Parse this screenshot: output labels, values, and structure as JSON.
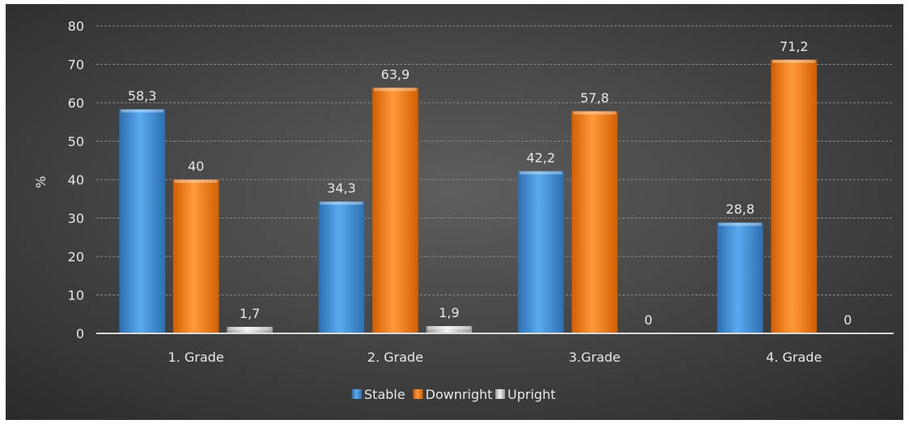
{
  "chart_data": {
    "type": "bar",
    "title": "",
    "xlabel": "",
    "ylabel": "%",
    "ylim": [
      0,
      80
    ],
    "yticks": [
      0,
      10,
      20,
      30,
      40,
      50,
      60,
      70,
      80
    ],
    "grid": true,
    "legend_position": "bottom",
    "categories": [
      "1. Grade",
      "2. Grade",
      "3.Grade",
      "4. Grade"
    ],
    "series": [
      {
        "name": "Stable",
        "color": "#3d8fd6",
        "values": [
          58.3,
          34.3,
          42.2,
          28.8
        ],
        "labels": [
          "58,3",
          "34,3",
          "42,2",
          "28,8"
        ]
      },
      {
        "name": "Downright",
        "color": "#f07a12",
        "values": [
          40,
          63.9,
          57.8,
          71.2
        ],
        "labels": [
          "40",
          "63,9",
          "57,8",
          "71,2"
        ]
      },
      {
        "name": "Upright",
        "color": "#c9c9c9",
        "values": [
          1.7,
          1.9,
          0,
          0
        ],
        "labels": [
          "1,7",
          "1,9",
          "0",
          "0"
        ]
      }
    ]
  }
}
